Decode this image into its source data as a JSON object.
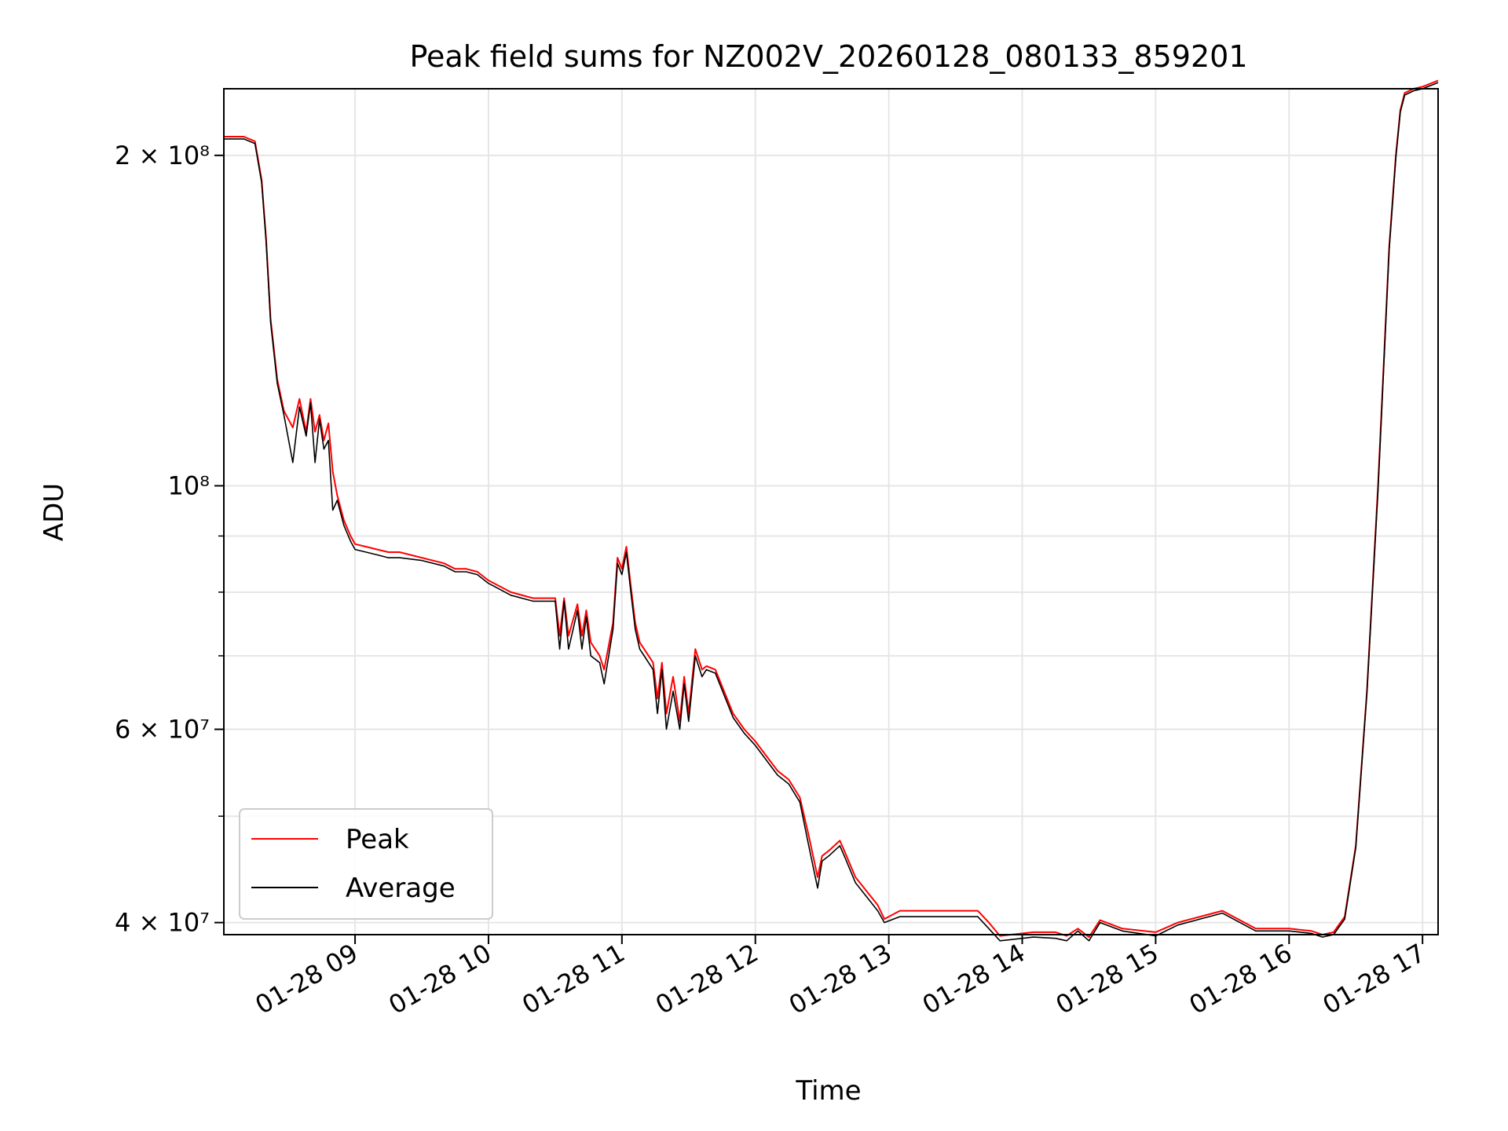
{
  "chart_data": {
    "type": "line",
    "title": "Peak field sums for NZ002V_20260128_080133_859201",
    "xlabel": "Time",
    "ylabel": "ADU",
    "yscale": "log",
    "grid": true,
    "legend_placement": "lower-left",
    "xlim": [
      "2026-01-28 08:01",
      "2026-01-28 17:07"
    ],
    "ylim": [
      39000000,
      230000000
    ],
    "x_ticks": [
      "01-28 09",
      "01-28 10",
      "01-28 11",
      "01-28 12",
      "01-28 13",
      "01-28 14",
      "01-28 15",
      "01-28 16",
      "01-28 17"
    ],
    "y_ticks": [
      {
        "value": 40000000,
        "label": "4 × 10⁷"
      },
      {
        "value": 60000000,
        "label": "6 × 10⁷"
      },
      {
        "value": 100000000,
        "label": "10⁸"
      },
      {
        "value": 200000000,
        "label": "2 × 10⁸"
      }
    ],
    "y_minor_ticks": [
      50000000,
      70000000,
      80000000,
      90000000
    ],
    "x": [
      "2026-01-28 08:01",
      "2026-01-28 08:10",
      "2026-01-28 08:15",
      "2026-01-28 08:18",
      "2026-01-28 08:20",
      "2026-01-28 08:22",
      "2026-01-28 08:25",
      "2026-01-28 08:28",
      "2026-01-28 08:32",
      "2026-01-28 08:35",
      "2026-01-28 08:38",
      "2026-01-28 08:40",
      "2026-01-28 08:42",
      "2026-01-28 08:44",
      "2026-01-28 08:46",
      "2026-01-28 08:48",
      "2026-01-28 08:50",
      "2026-01-28 08:52",
      "2026-01-28 08:55",
      "2026-01-28 08:58",
      "2026-01-28 09:00",
      "2026-01-28 09:05",
      "2026-01-28 09:10",
      "2026-01-28 09:15",
      "2026-01-28 09:20",
      "2026-01-28 09:30",
      "2026-01-28 09:40",
      "2026-01-28 09:45",
      "2026-01-28 09:50",
      "2026-01-28 09:55",
      "2026-01-28 10:00",
      "2026-01-28 10:05",
      "2026-01-28 10:10",
      "2026-01-28 10:20",
      "2026-01-28 10:30",
      "2026-01-28 10:32",
      "2026-01-28 10:34",
      "2026-01-28 10:36",
      "2026-01-28 10:40",
      "2026-01-28 10:42",
      "2026-01-28 10:44",
      "2026-01-28 10:46",
      "2026-01-28 10:50",
      "2026-01-28 10:52",
      "2026-01-28 10:56",
      "2026-01-28 10:58",
      "2026-01-28 11:00",
      "2026-01-28 11:02",
      "2026-01-28 11:04",
      "2026-01-28 11:06",
      "2026-01-28 11:08",
      "2026-01-28 11:10",
      "2026-01-28 11:14",
      "2026-01-28 11:16",
      "2026-01-28 11:18",
      "2026-01-28 11:20",
      "2026-01-28 11:23",
      "2026-01-28 11:26",
      "2026-01-28 11:28",
      "2026-01-28 11:30",
      "2026-01-28 11:33",
      "2026-01-28 11:36",
      "2026-01-28 11:38",
      "2026-01-28 11:42",
      "2026-01-28 11:50",
      "2026-01-28 11:55",
      "2026-01-28 12:00",
      "2026-01-28 12:10",
      "2026-01-28 12:15",
      "2026-01-28 12:20",
      "2026-01-28 12:24",
      "2026-01-28 12:28",
      "2026-01-28 12:30",
      "2026-01-28 12:33",
      "2026-01-28 12:38",
      "2026-01-28 12:40",
      "2026-01-28 12:45",
      "2026-01-28 12:55",
      "2026-01-28 12:58",
      "2026-01-28 13:05",
      "2026-01-28 13:20",
      "2026-01-28 13:40",
      "2026-01-28 13:45",
      "2026-01-28 13:50",
      "2026-01-28 13:55",
      "2026-01-28 14:05",
      "2026-01-28 14:15",
      "2026-01-28 14:20",
      "2026-01-28 14:25",
      "2026-01-28 14:30",
      "2026-01-28 14:35",
      "2026-01-28 14:45",
      "2026-01-28 15:00",
      "2026-01-28 15:10",
      "2026-01-28 15:20",
      "2026-01-28 15:30",
      "2026-01-28 15:45",
      "2026-01-28 16:00",
      "2026-01-28 16:10",
      "2026-01-28 16:15",
      "2026-01-28 16:20",
      "2026-01-28 16:25",
      "2026-01-28 16:30",
      "2026-01-28 16:35",
      "2026-01-28 16:40",
      "2026-01-28 16:45",
      "2026-01-28 16:48",
      "2026-01-28 16:50",
      "2026-01-28 16:52",
      "2026-01-28 16:56",
      "2026-01-28 17:00",
      "2026-01-28 17:07"
    ],
    "series": [
      {
        "name": "Peak",
        "color": "#ff0000",
        "values": [
          208000000,
          208000000,
          206000000,
          190000000,
          168000000,
          142000000,
          125000000,
          117000000,
          113000000,
          120000000,
          112000000,
          120000000,
          112000000,
          116000000,
          110000000,
          114000000,
          103000000,
          98000000,
          93000000,
          90000000,
          88500000,
          88000000,
          87500000,
          87000000,
          87000000,
          86000000,
          85000000,
          84000000,
          84000000,
          83500000,
          82000000,
          81000000,
          80000000,
          79000000,
          79000000,
          73000000,
          79000000,
          73000000,
          78000000,
          73000000,
          77000000,
          72000000,
          70000000,
          68000000,
          75000000,
          86000000,
          84000000,
          88000000,
          81000000,
          75000000,
          72000000,
          71000000,
          69000000,
          64000000,
          69000000,
          62000000,
          67000000,
          61000000,
          67000000,
          62000000,
          71000000,
          68000000,
          68500000,
          68000000,
          62000000,
          60000000,
          58500000,
          55000000,
          54000000,
          52000000,
          48000000,
          44000000,
          46000000,
          46500000,
          47500000,
          46500000,
          44000000,
          41500000,
          40300000,
          41000000,
          41000000,
          41000000,
          40000000,
          38900000,
          39000000,
          39200000,
          39200000,
          38900000,
          39500000,
          38800000,
          40200000,
          39500000,
          39200000,
          40000000,
          40500000,
          41000000,
          39500000,
          39500000,
          39300000,
          39000000,
          39200000,
          40500000,
          47000000,
          65000000,
          100000000,
          165000000,
          200000000,
          220000000,
          228000000,
          230000000,
          231000000,
          234000000
        ]
      },
      {
        "name": "Average",
        "color": "#000000",
        "values": [
          207000000,
          207000000,
          205000000,
          189000000,
          167000000,
          141000000,
          124000000,
          116000000,
          105000000,
          118000000,
          111000000,
          119000000,
          105000000,
          115000000,
          108000000,
          110000000,
          95000000,
          97000000,
          92000000,
          89000000,
          87500000,
          87000000,
          86500000,
          86000000,
          86000000,
          85500000,
          84500000,
          83500000,
          83500000,
          83000000,
          81500000,
          80500000,
          79500000,
          78500000,
          78500000,
          71000000,
          78500000,
          71000000,
          77000000,
          71000000,
          76000000,
          70000000,
          69000000,
          66000000,
          74000000,
          85000000,
          83000000,
          87000000,
          80000000,
          74000000,
          71000000,
          70000000,
          68000000,
          62000000,
          68000000,
          60000000,
          65000000,
          60000000,
          66000000,
          61000000,
          70000000,
          67000000,
          68000000,
          67500000,
          61500000,
          59500000,
          58000000,
          54500000,
          53500000,
          51500000,
          47000000,
          43000000,
          45500000,
          46000000,
          47000000,
          46000000,
          43500000,
          41000000,
          40000000,
          40500000,
          40500000,
          40500000,
          39500000,
          38500000,
          38600000,
          38800000,
          38700000,
          38500000,
          39300000,
          38500000,
          40000000,
          39300000,
          38900000,
          39800000,
          40300000,
          40800000,
          39300000,
          39300000,
          39100000,
          38800000,
          39000000,
          40300000,
          46800000,
          64800000,
          99000000,
          164000000,
          199000000,
          219000000,
          227000000,
          229000000,
          230000000,
          233000000
        ]
      }
    ]
  }
}
